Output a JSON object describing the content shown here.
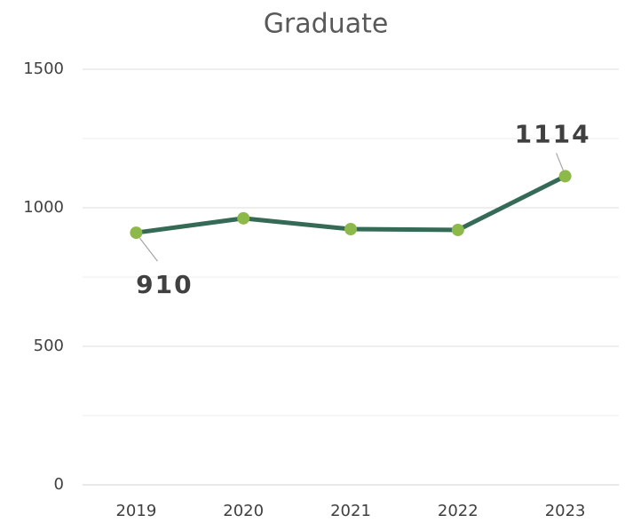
{
  "chart_data": {
    "type": "line",
    "title": "Graduate",
    "categories": [
      "2019",
      "2020",
      "2021",
      "2022",
      "2023"
    ],
    "series": [
      {
        "name": "Graduate",
        "color": "#356a56",
        "marker_color": "#8db84a",
        "values": [
          910,
          962,
          923,
          920,
          1114
        ],
        "value_labels": [
          "910",
          null,
          null,
          null,
          "1114"
        ]
      }
    ],
    "ylim": [
      0,
      1500
    ],
    "yticks": [
      0,
      500,
      1000,
      1500
    ],
    "minor_yticks": [
      250,
      750,
      1250
    ],
    "grid": true,
    "legend": false
  }
}
